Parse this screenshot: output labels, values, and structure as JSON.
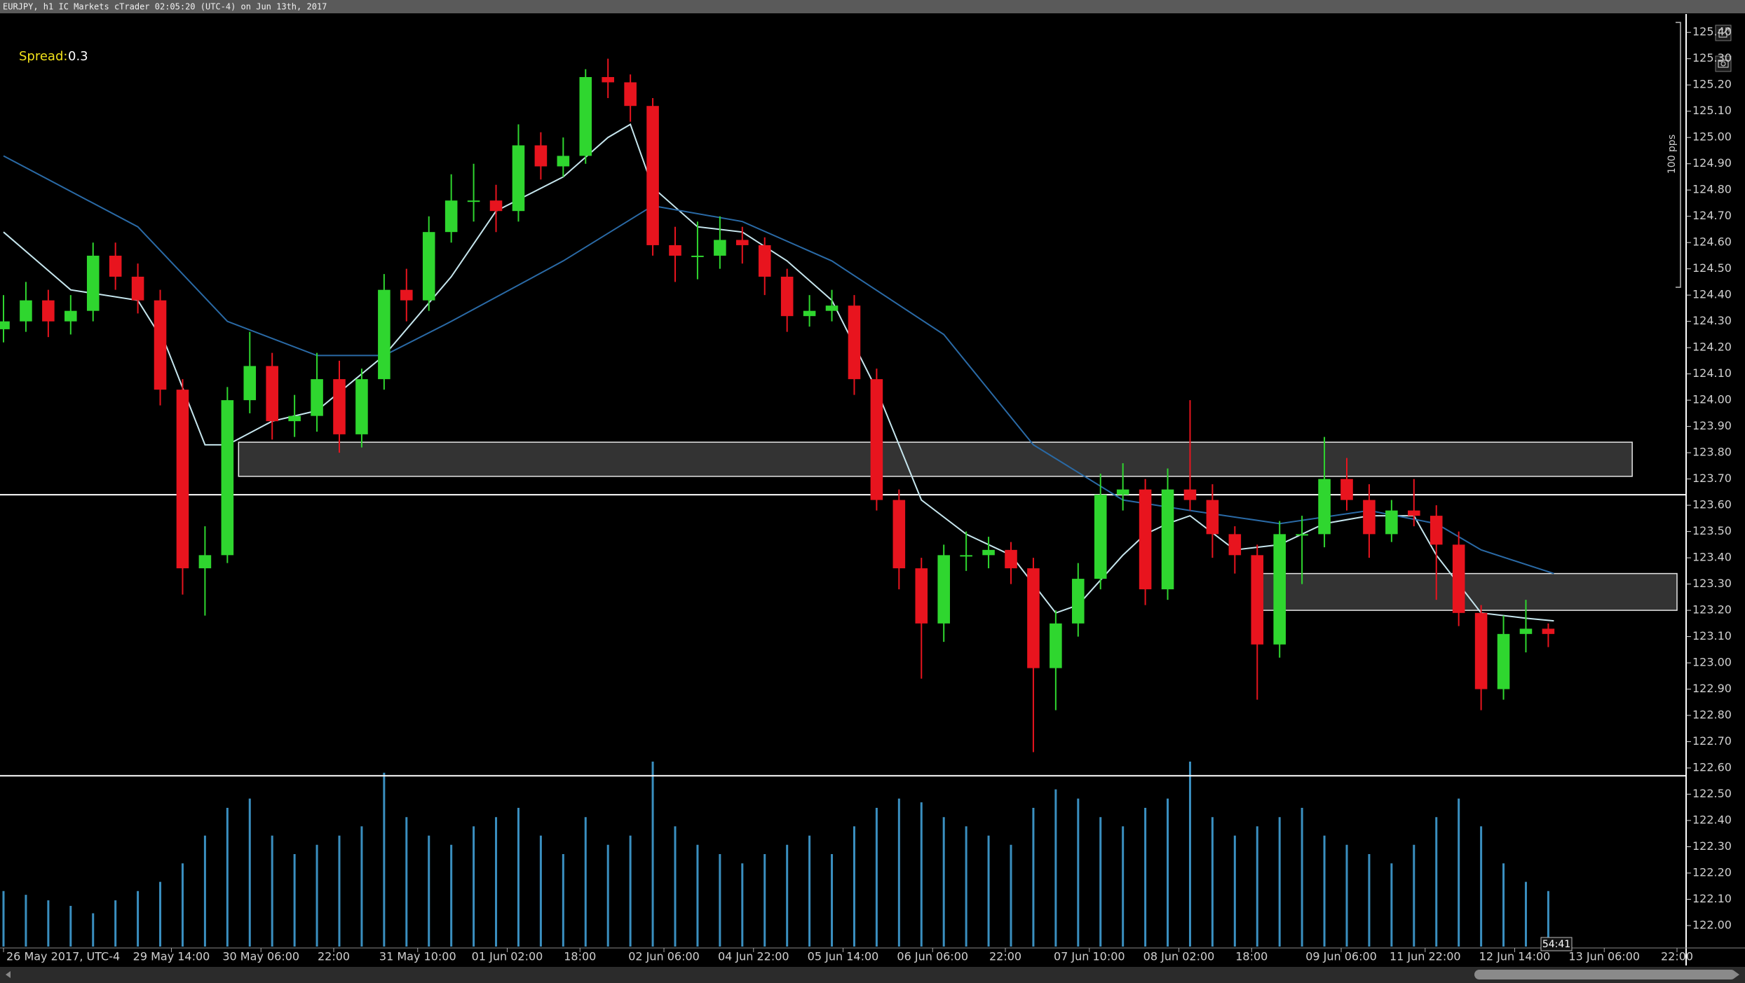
{
  "chart_data": {
    "type": "candlestick",
    "title": "EURJPY, h1 IC Markets cTrader 02:05:20 (UTC-4) on Jun 13th, 2017",
    "spread_label": "Spread:",
    "spread_value": 0.3,
    "ruler_label": "100 pps",
    "countdown": "54:41",
    "up_color": "#2fd62f",
    "down_color": "#e8141e",
    "volume_color": "#3a8fc0",
    "x": [
      0,
      4,
      8,
      12,
      16,
      20,
      24,
      28,
      32,
      36,
      40,
      44,
      48,
      52,
      56,
      60,
      64,
      68,
      72,
      76,
      80,
      84,
      88,
      92,
      96,
      100,
      104,
      108,
      112,
      116,
      120,
      124,
      128,
      132,
      136,
      140,
      144,
      148,
      152,
      156,
      160,
      164,
      168,
      172,
      176,
      180,
      184,
      188,
      192,
      196,
      200,
      204,
      208,
      212,
      216,
      220,
      224,
      228,
      232,
      236,
      240,
      244,
      248,
      252,
      256,
      260,
      264,
      268,
      272,
      276
    ],
    "open": [
      124.27,
      124.3,
      124.38,
      124.3,
      124.34,
      124.55,
      124.47,
      124.38,
      124.04,
      123.36,
      123.41,
      124.0,
      124.13,
      123.92,
      123.94,
      124.08,
      123.87,
      124.08,
      124.42,
      124.38,
      124.64,
      124.76,
      124.76,
      124.72,
      124.97,
      124.89,
      124.93,
      125.23,
      125.21,
      125.12,
      124.59,
      124.55,
      124.55,
      124.61,
      124.59,
      124.47,
      124.32,
      124.34,
      124.36,
      124.08,
      123.62,
      123.36,
      123.15,
      123.41,
      123.41,
      123.43,
      123.36,
      122.98,
      123.15,
      123.32,
      123.64,
      123.66,
      123.28,
      123.66,
      123.62,
      123.49,
      123.41,
      123.07,
      123.49,
      123.49,
      123.7,
      123.62,
      123.49,
      123.58,
      123.56,
      123.45,
      123.19,
      122.9,
      123.11,
      123.13
    ],
    "high": [
      124.4,
      124.45,
      124.42,
      124.4,
      124.6,
      124.6,
      124.52,
      124.42,
      124.08,
      123.52,
      124.05,
      124.26,
      124.18,
      124.02,
      124.18,
      124.15,
      124.12,
      124.48,
      124.5,
      124.7,
      124.86,
      124.9,
      124.82,
      125.05,
      125.02,
      125.0,
      125.26,
      125.3,
      125.24,
      125.15,
      124.66,
      124.68,
      124.7,
      124.66,
      124.62,
      124.5,
      124.4,
      124.42,
      124.4,
      124.12,
      123.66,
      123.4,
      123.45,
      123.5,
      123.48,
      123.46,
      123.4,
      123.2,
      123.38,
      123.72,
      123.76,
      123.7,
      123.74,
      124.0,
      123.68,
      123.52,
      123.45,
      123.54,
      123.56,
      123.86,
      123.78,
      123.68,
      123.62,
      123.7,
      123.6,
      123.5,
      123.22,
      123.18,
      123.24,
      123.15
    ],
    "low": [
      124.22,
      124.26,
      124.24,
      124.25,
      124.3,
      124.42,
      124.33,
      123.98,
      123.26,
      123.18,
      123.38,
      123.95,
      123.85,
      123.86,
      123.88,
      123.8,
      123.82,
      124.04,
      124.3,
      124.34,
      124.6,
      124.68,
      124.64,
      124.68,
      124.84,
      124.85,
      124.9,
      125.15,
      125.06,
      124.55,
      124.45,
      124.46,
      124.5,
      124.52,
      124.4,
      124.26,
      124.28,
      124.3,
      124.02,
      123.58,
      123.28,
      122.94,
      123.08,
      123.35,
      123.36,
      123.3,
      122.66,
      122.82,
      123.1,
      123.28,
      123.58,
      123.22,
      123.24,
      123.58,
      123.4,
      123.34,
      122.86,
      123.02,
      123.3,
      123.44,
      123.58,
      123.4,
      123.46,
      123.52,
      123.24,
      123.14,
      122.82,
      122.86,
      123.04,
      123.06
    ],
    "close": [
      124.3,
      124.38,
      124.3,
      124.34,
      124.55,
      124.47,
      124.38,
      124.04,
      123.36,
      123.41,
      124.0,
      124.13,
      123.92,
      123.94,
      124.08,
      123.87,
      124.08,
      124.42,
      124.38,
      124.64,
      124.76,
      124.76,
      124.72,
      124.97,
      124.89,
      124.93,
      125.23,
      125.21,
      125.12,
      124.59,
      124.55,
      124.55,
      124.61,
      124.59,
      124.47,
      124.32,
      124.34,
      124.36,
      124.08,
      123.62,
      123.36,
      123.15,
      123.41,
      123.41,
      123.43,
      123.36,
      122.98,
      123.15,
      123.32,
      123.64,
      123.66,
      123.28,
      123.66,
      123.62,
      123.49,
      123.41,
      123.07,
      123.49,
      123.49,
      123.7,
      123.62,
      123.49,
      123.58,
      123.56,
      123.45,
      123.19,
      122.9,
      123.11,
      123.13,
      123.11
    ],
    "volume": [
      30,
      28,
      25,
      22,
      18,
      25,
      30,
      35,
      45,
      60,
      75,
      80,
      60,
      50,
      55,
      60,
      65,
      94,
      70,
      60,
      55,
      65,
      70,
      75,
      60,
      50,
      70,
      55,
      60,
      100,
      65,
      55,
      50,
      45,
      50,
      55,
      60,
      50,
      65,
      75,
      80,
      78,
      70,
      65,
      60,
      55,
      75,
      85,
      80,
      70,
      65,
      75,
      80,
      100,
      70,
      60,
      65,
      70,
      75,
      60,
      55,
      50,
      45,
      55,
      70,
      80,
      65,
      45,
      35,
      30
    ],
    "volume_lim": [
      0,
      100
    ],
    "moving_averages": [
      {
        "color": "#c6e6ee",
        "x": [
          0,
          12,
          24,
          29,
          36,
          40,
          48,
          56,
          68,
          80,
          88,
          100,
          108,
          112,
          116,
          124,
          132,
          140,
          148,
          156,
          164,
          172,
          180,
          188,
          192,
          200,
          204,
          208,
          212,
          220,
          228,
          236,
          244,
          252,
          256,
          264,
          272,
          277
        ],
        "values": [
          124.64,
          124.42,
          124.38,
          124.21,
          123.83,
          123.83,
          123.92,
          123.96,
          124.17,
          124.47,
          124.72,
          124.85,
          125.0,
          125.05,
          124.81,
          124.66,
          124.64,
          124.53,
          124.38,
          124.04,
          123.62,
          123.49,
          123.41,
          123.19,
          123.22,
          123.41,
          123.49,
          123.53,
          123.56,
          123.43,
          123.45,
          123.53,
          123.56,
          123.56,
          123.41,
          123.19,
          123.17,
          123.16
        ]
      },
      {
        "color": "#2a6aa6",
        "x": [
          0,
          24,
          40,
          56,
          68,
          80,
          100,
          116,
          132,
          148,
          168,
          184,
          200,
          212,
          228,
          244,
          256,
          264,
          277
        ],
        "values": [
          124.93,
          124.66,
          124.3,
          124.17,
          124.17,
          124.3,
          124.53,
          124.74,
          124.68,
          124.53,
          124.25,
          123.83,
          123.62,
          123.58,
          123.53,
          123.58,
          123.53,
          123.43,
          123.34
        ]
      }
    ],
    "hlines": [
      {
        "value": 123.64,
        "color": "#ffffff"
      },
      {
        "value": 122.57,
        "color": "#ffffff"
      }
    ],
    "zones": [
      {
        "x": [
          42,
          291
        ],
        "y": [
          123.71,
          123.84
        ]
      },
      {
        "x": [
          225,
          299
        ],
        "y": [
          123.2,
          123.34
        ]
      }
    ],
    "xlim": [
      0,
      300
    ],
    "ylim": [
      121.92,
      125.47
    ],
    "xticks": [
      {
        "value": 0,
        "label": "26 May 2017, UTC-4"
      },
      {
        "value": 30,
        "label": "29 May 14:00"
      },
      {
        "value": 46,
        "label": "30 May 06:00"
      },
      {
        "value": 59,
        "label": "22:00"
      },
      {
        "value": 74,
        "label": "31 May 10:00"
      },
      {
        "value": 90,
        "label": "01 Jun 02:00"
      },
      {
        "value": 103,
        "label": "18:00"
      },
      {
        "value": 118,
        "label": "02 Jun 06:00"
      },
      {
        "value": 134,
        "label": "04 Jun 22:00"
      },
      {
        "value": 150,
        "label": "05 Jun 14:00"
      },
      {
        "value": 166,
        "label": "06 Jun 06:00"
      },
      {
        "value": 179,
        "label": "22:00"
      },
      {
        "value": 194,
        "label": "07 Jun 10:00"
      },
      {
        "value": 210,
        "label": "08 Jun 02:00"
      },
      {
        "value": 223,
        "label": "18:00"
      },
      {
        "value": 239,
        "label": "09 Jun 06:00"
      },
      {
        "value": 254,
        "label": "11 Jun 22:00"
      },
      {
        "value": 270,
        "label": "12 Jun 14:00"
      },
      {
        "value": 286,
        "label": "13 Jun 06:00"
      },
      {
        "value": 299,
        "label": "22:00"
      }
    ],
    "yticks": [
      {
        "value": 122.0,
        "label": "122.00"
      },
      {
        "value": 122.1,
        "label": "122.10"
      },
      {
        "value": 122.2,
        "label": "122.20"
      },
      {
        "value": 122.3,
        "label": "122.30"
      },
      {
        "value": 122.4,
        "label": "122.40"
      },
      {
        "value": 122.5,
        "label": "122.50"
      },
      {
        "value": 122.6,
        "label": "122.60"
      },
      {
        "value": 122.7,
        "label": "122.70"
      },
      {
        "value": 122.8,
        "label": "122.80"
      },
      {
        "value": 122.9,
        "label": "122.90"
      },
      {
        "value": 123.0,
        "label": "123.00"
      },
      {
        "value": 123.1,
        "label": "123.10"
      },
      {
        "value": 123.2,
        "label": "123.20"
      },
      {
        "value": 123.3,
        "label": "123.30"
      },
      {
        "value": 123.4,
        "label": "123.40"
      },
      {
        "value": 123.5,
        "label": "123.50"
      },
      {
        "value": 123.6,
        "label": "123.60"
      },
      {
        "value": 123.7,
        "label": "123.70"
      },
      {
        "value": 123.8,
        "label": "123.80"
      },
      {
        "value": 123.9,
        "label": "123.90"
      },
      {
        "value": 124.0,
        "label": "124.00"
      },
      {
        "value": 124.1,
        "label": "124.10"
      },
      {
        "value": 124.2,
        "label": "124.20"
      },
      {
        "value": 124.3,
        "label": "124.30"
      },
      {
        "value": 124.4,
        "label": "124.40"
      },
      {
        "value": 124.5,
        "label": "124.50"
      },
      {
        "value": 124.6,
        "label": "124.60"
      },
      {
        "value": 124.7,
        "label": "124.70"
      },
      {
        "value": 124.8,
        "label": "124.80"
      },
      {
        "value": 124.9,
        "label": "124.90"
      },
      {
        "value": 125.0,
        "label": "125.00"
      },
      {
        "value": 125.1,
        "label": "125.10"
      },
      {
        "value": 125.2,
        "label": "125.20"
      },
      {
        "value": 125.3,
        "label": "125.30"
      },
      {
        "value": 125.4,
        "label": "125.40"
      }
    ]
  }
}
